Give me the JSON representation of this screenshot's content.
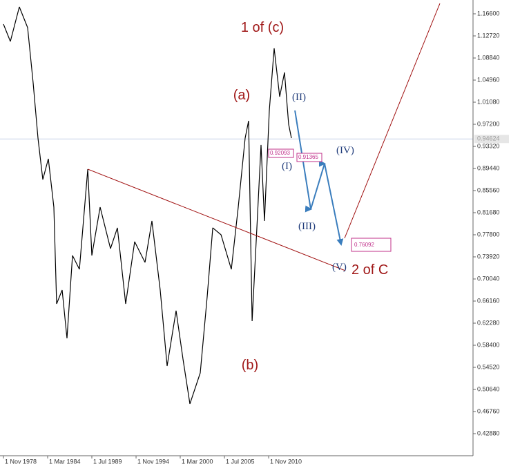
{
  "chart_data": {
    "type": "line",
    "color": "#000000",
    "x": [
      "1978-11-01",
      "1979-09-01",
      "1980-10-01",
      "1981-10-01",
      "1982-06-01",
      "1983-01-01",
      "1983-08-01",
      "1984-04-01",
      "1984-12-01",
      "1985-04-01",
      "1985-12-01",
      "1986-07-01",
      "1987-03-01",
      "1988-01-01",
      "1989-01-01",
      "1989-07-01",
      "1990-07-01",
      "1991-10-01",
      "1992-08-01",
      "1993-08-01",
      "1994-09-01",
      "1995-12-01",
      "1996-10-01",
      "1997-10-01",
      "1998-08-01",
      "1999-09-01",
      "2000-07-01",
      "2001-05-01",
      "2002-08-01",
      "2003-06-01",
      "2004-02-01",
      "2005-02-01",
      "2006-05-01",
      "2007-03-01",
      "2008-01-01",
      "2008-06-01",
      "2008-11-01",
      "2009-06-01",
      "2009-12-01",
      "2010-05-01",
      "2010-12-01",
      "2011-07-01",
      "2012-03-01",
      "2012-10-01",
      "2013-04-01",
      "2013-08-01"
    ],
    "values": [
      1.1478,
      1.1175,
      1.1781,
      1.1418,
      1.0448,
      0.9478,
      0.875,
      0.9114,
      0.8265,
      0.6568,
      0.681,
      0.5961,
      0.7416,
      0.7174,
      0.8932,
      0.7416,
      0.8265,
      0.7538,
      0.7902,
      0.6568,
      0.7659,
      0.7295,
      0.8022,
      0.681,
      0.5476,
      0.6447,
      0.5598,
      0.481,
      0.5355,
      0.6689,
      0.7902,
      0.778,
      0.7174,
      0.8265,
      0.9478,
      0.9781,
      0.6264,
      0.7902,
      0.9357,
      0.8023,
      0.9963,
      1.1054,
      1.0205,
      1.063,
      0.972,
      0.9478
    ],
    "xlim": [
      "1978-06-01",
      "2035-07-01"
    ],
    "xticks": [
      {
        "value": "1978-11-01",
        "label": "1 Nov 1978"
      },
      {
        "value": "1984-03-01",
        "label": "1 Mar 1984"
      },
      {
        "value": "1989-07-01",
        "label": "1 Jul 1989"
      },
      {
        "value": "1994-11-01",
        "label": "1 Nov 1994"
      },
      {
        "value": "2000-03-01",
        "label": "1 Mar 2000"
      },
      {
        "value": "2005-07-01",
        "label": "1 Jul 2005"
      },
      {
        "value": "2010-11-01",
        "label": "1 Nov 2010"
      }
    ],
    "ylim": [
      0.39,
      1.19025
    ],
    "yticks": [
      {
        "value": 1.166,
        "label": "1.16600"
      },
      {
        "value": 1.1272,
        "label": "1.12720"
      },
      {
        "value": 1.0884,
        "label": "1.08840"
      },
      {
        "value": 1.0496,
        "label": "1.04960"
      },
      {
        "value": 1.0108,
        "label": "1.01080"
      },
      {
        "value": 0.972,
        "label": "0.97200"
      },
      {
        "value": 0.9332,
        "label": "0.93320"
      },
      {
        "value": 0.8944,
        "label": "0.89440"
      },
      {
        "value": 0.8556,
        "label": "0.85560"
      },
      {
        "value": 0.8168,
        "label": "0.81680"
      },
      {
        "value": 0.778,
        "label": "0.77800"
      },
      {
        "value": 0.7392,
        "label": "0.73920"
      },
      {
        "value": 0.7004,
        "label": "0.70040"
      },
      {
        "value": 0.6616,
        "label": "0.66160"
      },
      {
        "value": 0.6228,
        "label": "0.62280"
      },
      {
        "value": 0.584,
        "label": "0.58400"
      },
      {
        "value": 0.5452,
        "label": "0.54520"
      },
      {
        "value": 0.5064,
        "label": "0.50640"
      },
      {
        "value": 0.4676,
        "label": "0.46760"
      },
      {
        "value": 0.4288,
        "label": "0.42880"
      }
    ],
    "current_price": {
      "value": 0.94624,
      "label": "0.94624"
    },
    "trend_lines": [
      {
        "color": "#a01010",
        "x": [
          "1989-01-01",
          "2020-02-01"
        ],
        "values": [
          0.8932,
          0.715
        ]
      },
      {
        "color": "#a01010",
        "x": [
          "2020-01-01",
          "2031-07-01"
        ],
        "values": [
          0.772,
          1.1842
        ]
      },
      {
        "color": "#3a7dbd",
        "arrows": true,
        "x": [
          "2014-01-01",
          "2015-12-01",
          "2017-08-01",
          "2019-08-01"
        ],
        "values": [
          0.9963,
          0.8229,
          0.9029,
          0.76092
        ]
      }
    ],
    "annotations": [
      "1 of (c)",
      "(a)",
      "(b)",
      "(II)",
      "(I)",
      "(III)",
      "(IV)",
      "(V)",
      "2 of C",
      "0.92093",
      "0.91365",
      "0.76092"
    ]
  }
}
